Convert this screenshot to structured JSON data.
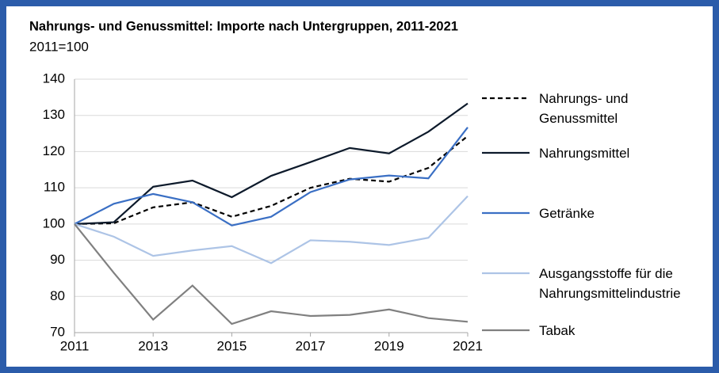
{
  "chart_data": {
    "type": "line",
    "title": "Nahrungs- und Genussmittel: Importe nach Untergruppen, 2011-2021",
    "subtitle": "2011=100",
    "x": [
      2011,
      2012,
      2013,
      2014,
      2015,
      2016,
      2017,
      2018,
      2019,
      2020,
      2021
    ],
    "series": [
      {
        "name": "Nahrungs- und Genussmittel",
        "color": "#000000",
        "dashed": true,
        "values": [
          100,
          100.2,
          104.6,
          106,
          102,
          105,
          110,
          112.5,
          111.7,
          115.5,
          124.3
        ]
      },
      {
        "name": "Nahrungsmittel",
        "color": "#0d1a2b",
        "values": [
          100,
          100.5,
          110.3,
          112,
          107.4,
          113.3,
          117.1,
          121,
          119.5,
          125.5,
          133.3
        ]
      },
      {
        "name": "Getränke",
        "color": "#3a6fc4",
        "values": [
          100,
          105.6,
          108.3,
          106,
          99.6,
          102,
          108.8,
          112.3,
          113.4,
          112.6,
          126.7
        ]
      },
      {
        "name": "Ausgangsstoffe für die Nahrungsmittelindustrie",
        "color": "#adc4e6",
        "values": [
          100,
          96.5,
          91.2,
          92.7,
          93.9,
          89.2,
          95.5,
          95.1,
          94.2,
          96.2,
          107.7
        ]
      },
      {
        "name": "Tabak",
        "color": "#808080",
        "values": [
          100,
          86.5,
          73.6,
          83,
          72.4,
          75.9,
          74.6,
          74.9,
          76.4,
          74,
          73
        ]
      }
    ],
    "xlim": [
      2011,
      2021
    ],
    "xticks": [
      2011,
      2013,
      2015,
      2017,
      2019,
      2021
    ],
    "ylim": [
      70,
      140
    ],
    "yticks": [
      70,
      80,
      90,
      100,
      110,
      120,
      130,
      140
    ],
    "grid": true,
    "legend": "right"
  }
}
